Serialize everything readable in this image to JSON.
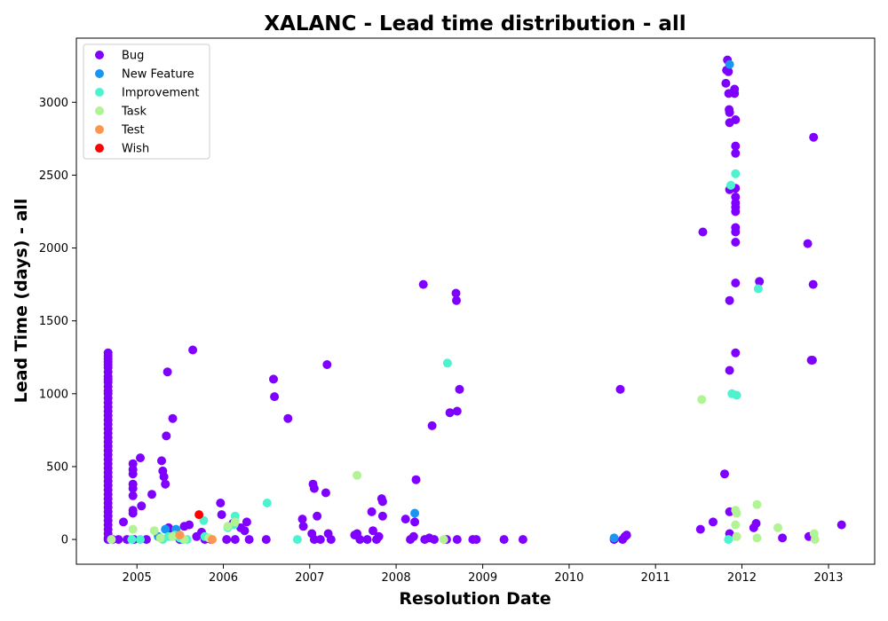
{
  "chart_data": {
    "type": "scatter",
    "title": "XALANC - Lead time distribution - all",
    "xlabel": "Resolution Date",
    "ylabel": "Lead Time (days) - all",
    "xlim": [
      "2004-04-20",
      "2013-07-15"
    ],
    "ylim": [
      -170,
      3440
    ],
    "x_ticks": [
      "2005-01-01",
      "2006-01-01",
      "2007-01-01",
      "2008-01-01",
      "2009-01-01",
      "2010-01-01",
      "2011-01-01",
      "2012-01-01",
      "2013-01-01"
    ],
    "x_tick_labels": [
      "2005",
      "2006",
      "2007",
      "2008",
      "2009",
      "2010",
      "2011",
      "2012",
      "2013"
    ],
    "y_ticks": [
      0,
      500,
      1000,
      1500,
      2000,
      2500,
      3000
    ],
    "y_tick_labels": [
      "0",
      "500",
      "1000",
      "1500",
      "2000",
      "2500",
      "3000"
    ],
    "grid": false,
    "legend_position": "top-left",
    "series": [
      {
        "name": "Bug",
        "color": "#8000ff",
        "points": [
          [
            "2004-09-01",
            1280
          ],
          [
            "2004-09-01",
            1260
          ],
          [
            "2004-09-01",
            1240
          ],
          [
            "2004-09-01",
            1220
          ],
          [
            "2004-09-01",
            1200
          ],
          [
            "2004-09-01",
            1180
          ],
          [
            "2004-09-01",
            1150
          ],
          [
            "2004-09-01",
            1120
          ],
          [
            "2004-09-01",
            1100
          ],
          [
            "2004-09-01",
            1080
          ],
          [
            "2004-09-01",
            1050
          ],
          [
            "2004-09-01",
            1020
          ],
          [
            "2004-09-01",
            1000
          ],
          [
            "2004-09-01",
            970
          ],
          [
            "2004-09-01",
            940
          ],
          [
            "2004-09-01",
            910
          ],
          [
            "2004-09-01",
            880
          ],
          [
            "2004-09-01",
            850
          ],
          [
            "2004-09-01",
            820
          ],
          [
            "2004-09-01",
            790
          ],
          [
            "2004-09-01",
            760
          ],
          [
            "2004-09-01",
            730
          ],
          [
            "2004-09-01",
            700
          ],
          [
            "2004-09-01",
            670
          ],
          [
            "2004-09-01",
            640
          ],
          [
            "2004-09-01",
            610
          ],
          [
            "2004-09-01",
            580
          ],
          [
            "2004-09-01",
            550
          ],
          [
            "2004-09-01",
            520
          ],
          [
            "2004-09-01",
            490
          ],
          [
            "2004-09-01",
            460
          ],
          [
            "2004-09-01",
            430
          ],
          [
            "2004-09-01",
            400
          ],
          [
            "2004-09-01",
            370
          ],
          [
            "2004-09-01",
            340
          ],
          [
            "2004-09-01",
            310
          ],
          [
            "2004-09-01",
            280
          ],
          [
            "2004-09-01",
            250
          ],
          [
            "2004-09-01",
            220
          ],
          [
            "2004-09-01",
            190
          ],
          [
            "2004-09-01",
            160
          ],
          [
            "2004-09-01",
            130
          ],
          [
            "2004-09-01",
            100
          ],
          [
            "2004-09-01",
            70
          ],
          [
            "2004-09-01",
            40
          ],
          [
            "2004-09-01",
            10
          ],
          [
            "2004-09-01",
            0
          ],
          [
            "2004-09-20",
            0
          ],
          [
            "2004-10-15",
            0
          ],
          [
            "2004-11-05",
            120
          ],
          [
            "2004-11-20",
            0
          ],
          [
            "2004-12-15",
            520
          ],
          [
            "2004-12-15",
            480
          ],
          [
            "2004-12-15",
            450
          ],
          [
            "2004-12-15",
            380
          ],
          [
            "2004-12-15",
            350
          ],
          [
            "2004-12-15",
            300
          ],
          [
            "2004-12-15",
            200
          ],
          [
            "2004-12-15",
            180
          ],
          [
            "2004-12-20",
            0
          ],
          [
            "2005-01-15",
            560
          ],
          [
            "2005-01-20",
            230
          ],
          [
            "2005-02-10",
            0
          ],
          [
            "2005-03-05",
            310
          ],
          [
            "2005-04-15",
            540
          ],
          [
            "2005-04-20",
            470
          ],
          [
            "2005-04-25",
            430
          ],
          [
            "2005-05-01",
            380
          ],
          [
            "2005-05-05",
            710
          ],
          [
            "2005-05-10",
            1150
          ],
          [
            "2005-05-15",
            80
          ],
          [
            "2005-05-20",
            30
          ],
          [
            "2005-06-01",
            830
          ],
          [
            "2005-06-10",
            50
          ],
          [
            "2005-07-01",
            0
          ],
          [
            "2005-07-20",
            90
          ],
          [
            "2005-08-10",
            100
          ],
          [
            "2005-08-25",
            1300
          ],
          [
            "2005-09-10",
            20
          ],
          [
            "2005-10-01",
            50
          ],
          [
            "2005-10-15",
            0
          ],
          [
            "2005-11-10",
            0
          ],
          [
            "2005-12-20",
            250
          ],
          [
            "2005-12-25",
            170
          ],
          [
            "2006-01-15",
            0
          ],
          [
            "2006-02-10",
            110
          ],
          [
            "2006-02-20",
            0
          ],
          [
            "2006-03-15",
            80
          ],
          [
            "2006-04-01",
            60
          ],
          [
            "2006-04-10",
            120
          ],
          [
            "2006-04-20",
            0
          ],
          [
            "2006-07-01",
            0
          ],
          [
            "2006-08-01",
            1100
          ],
          [
            "2006-08-05",
            980
          ],
          [
            "2006-10-01",
            830
          ],
          [
            "2006-12-01",
            140
          ],
          [
            "2006-12-05",
            90
          ],
          [
            "2007-01-15",
            380
          ],
          [
            "2007-01-20",
            350
          ],
          [
            "2007-02-01",
            160
          ],
          [
            "2007-01-10",
            40
          ],
          [
            "2007-01-20",
            0
          ],
          [
            "2007-02-15",
            0
          ],
          [
            "2007-03-10",
            320
          ],
          [
            "2007-03-15",
            1200
          ],
          [
            "2007-03-20",
            40
          ],
          [
            "2007-04-01",
            0
          ],
          [
            "2007-07-10",
            30
          ],
          [
            "2007-07-20",
            40
          ],
          [
            "2007-08-01",
            0
          ],
          [
            "2007-09-01",
            0
          ],
          [
            "2007-09-20",
            190
          ],
          [
            "2007-09-25",
            60
          ],
          [
            "2007-10-10",
            0
          ],
          [
            "2007-10-20",
            20
          ],
          [
            "2007-11-01",
            280
          ],
          [
            "2007-11-05",
            260
          ],
          [
            "2007-11-05",
            160
          ],
          [
            "2008-02-10",
            140
          ],
          [
            "2008-03-01",
            0
          ],
          [
            "2008-03-15",
            20
          ],
          [
            "2008-03-20",
            120
          ],
          [
            "2008-03-25",
            410
          ],
          [
            "2008-04-25",
            1750
          ],
          [
            "2008-05-01",
            0
          ],
          [
            "2008-05-20",
            10
          ],
          [
            "2008-06-01",
            780
          ],
          [
            "2008-06-10",
            0
          ],
          [
            "2008-08-01",
            0
          ],
          [
            "2008-08-15",
            870
          ],
          [
            "2008-09-10",
            1690
          ],
          [
            "2008-09-12",
            1640
          ],
          [
            "2008-09-15",
            880
          ],
          [
            "2008-09-25",
            1030
          ],
          [
            "2008-09-15",
            0
          ],
          [
            "2008-11-20",
            0
          ],
          [
            "2008-12-05",
            0
          ],
          [
            "2009-04-01",
            0
          ],
          [
            "2009-06-20",
            0
          ],
          [
            "2010-07-10",
            0
          ],
          [
            "2010-08-05",
            1030
          ],
          [
            "2010-08-15",
            0
          ],
          [
            "2010-08-25",
            20
          ],
          [
            "2010-09-01",
            30
          ],
          [
            "2011-07-10",
            70
          ],
          [
            "2011-07-20",
            2110
          ],
          [
            "2011-09-01",
            120
          ],
          [
            "2011-10-20",
            450
          ],
          [
            "2011-10-25",
            3130
          ],
          [
            "2011-10-28",
            3220
          ],
          [
            "2011-11-01",
            3290
          ],
          [
            "2011-11-05",
            3210
          ],
          [
            "2011-11-06",
            3060
          ],
          [
            "2011-11-08",
            2950
          ],
          [
            "2011-11-10",
            2930
          ],
          [
            "2011-11-10",
            2860
          ],
          [
            "2011-11-10",
            2400
          ],
          [
            "2011-11-10",
            1640
          ],
          [
            "2011-11-10",
            1160
          ],
          [
            "2011-11-10",
            190
          ],
          [
            "2011-11-10",
            40
          ],
          [
            "2011-12-01",
            3090
          ],
          [
            "2011-12-01",
            3060
          ],
          [
            "2011-12-05",
            2880
          ],
          [
            "2011-12-05",
            2700
          ],
          [
            "2011-12-05",
            2650
          ],
          [
            "2011-12-05",
            2410
          ],
          [
            "2011-12-05",
            2350
          ],
          [
            "2011-12-05",
            2310
          ],
          [
            "2011-12-05",
            2280
          ],
          [
            "2011-12-05",
            2250
          ],
          [
            "2011-12-05",
            2140
          ],
          [
            "2011-12-05",
            2110
          ],
          [
            "2011-12-05",
            2040
          ],
          [
            "2011-12-05",
            1760
          ],
          [
            "2011-12-05",
            1280
          ],
          [
            "2012-02-20",
            80
          ],
          [
            "2012-03-01",
            110
          ],
          [
            "2012-03-15",
            1770
          ],
          [
            "2012-06-20",
            10
          ],
          [
            "2012-10-05",
            2030
          ],
          [
            "2012-10-10",
            20
          ],
          [
            "2012-10-20",
            1230
          ],
          [
            "2012-10-25",
            1230
          ],
          [
            "2012-10-28",
            1750
          ],
          [
            "2012-10-30",
            2760
          ],
          [
            "2013-02-25",
            100
          ]
        ]
      },
      {
        "name": "New Feature",
        "color": "#1996f3",
        "points": [
          [
            "2005-04-01",
            20
          ],
          [
            "2005-05-01",
            70
          ],
          [
            "2005-06-15",
            70
          ],
          [
            "2005-07-15",
            0
          ],
          [
            "2008-03-20",
            180
          ],
          [
            "2010-07-10",
            10
          ],
          [
            "2011-11-10",
            3260
          ]
        ]
      },
      {
        "name": "Improvement",
        "color": "#4df3ce",
        "points": [
          [
            "2004-12-10",
            0
          ],
          [
            "2005-01-15",
            0
          ],
          [
            "2005-04-20",
            0
          ],
          [
            "2005-05-15",
            20
          ],
          [
            "2005-06-10",
            30
          ],
          [
            "2005-07-01",
            10
          ],
          [
            "2005-08-01",
            0
          ],
          [
            "2005-10-10",
            130
          ],
          [
            "2005-10-15",
            20
          ],
          [
            "2006-01-20",
            80
          ],
          [
            "2006-02-15",
            100
          ],
          [
            "2006-02-20",
            160
          ],
          [
            "2006-07-05",
            250
          ],
          [
            "2006-11-10",
            0
          ],
          [
            "2008-08-05",
            1210
          ],
          [
            "2011-11-05",
            0
          ],
          [
            "2011-11-15",
            2430
          ],
          [
            "2011-11-20",
            1000
          ],
          [
            "2011-12-05",
            2510
          ],
          [
            "2011-12-10",
            990
          ],
          [
            "2012-03-10",
            1720
          ]
        ]
      },
      {
        "name": "Task",
        "color": "#b2f396",
        "points": [
          [
            "2004-09-15",
            0
          ],
          [
            "2004-12-15",
            70
          ],
          [
            "2005-03-15",
            60
          ],
          [
            "2005-04-10",
            10
          ],
          [
            "2005-06-01",
            20
          ],
          [
            "2005-07-20",
            0
          ],
          [
            "2005-11-01",
            10
          ],
          [
            "2006-01-20",
            90
          ],
          [
            "2006-02-20",
            120
          ],
          [
            "2007-07-20",
            440
          ],
          [
            "2008-07-20",
            0
          ],
          [
            "2011-07-15",
            960
          ],
          [
            "2011-12-05",
            200
          ],
          [
            "2011-12-10",
            180
          ],
          [
            "2011-12-05",
            100
          ],
          [
            "2011-12-10",
            20
          ],
          [
            "2012-03-05",
            240
          ],
          [
            "2012-03-05",
            10
          ],
          [
            "2012-06-01",
            80
          ],
          [
            "2012-11-01",
            40
          ],
          [
            "2012-11-05",
            0
          ]
        ]
      },
      {
        "name": "Test",
        "color": "#ff964f",
        "points": [
          [
            "2005-07-01",
            30
          ],
          [
            "2005-11-15",
            0
          ]
        ]
      },
      {
        "name": "Wish",
        "color": "#ff0000",
        "points": [
          [
            "2005-09-20",
            170
          ]
        ]
      }
    ]
  }
}
